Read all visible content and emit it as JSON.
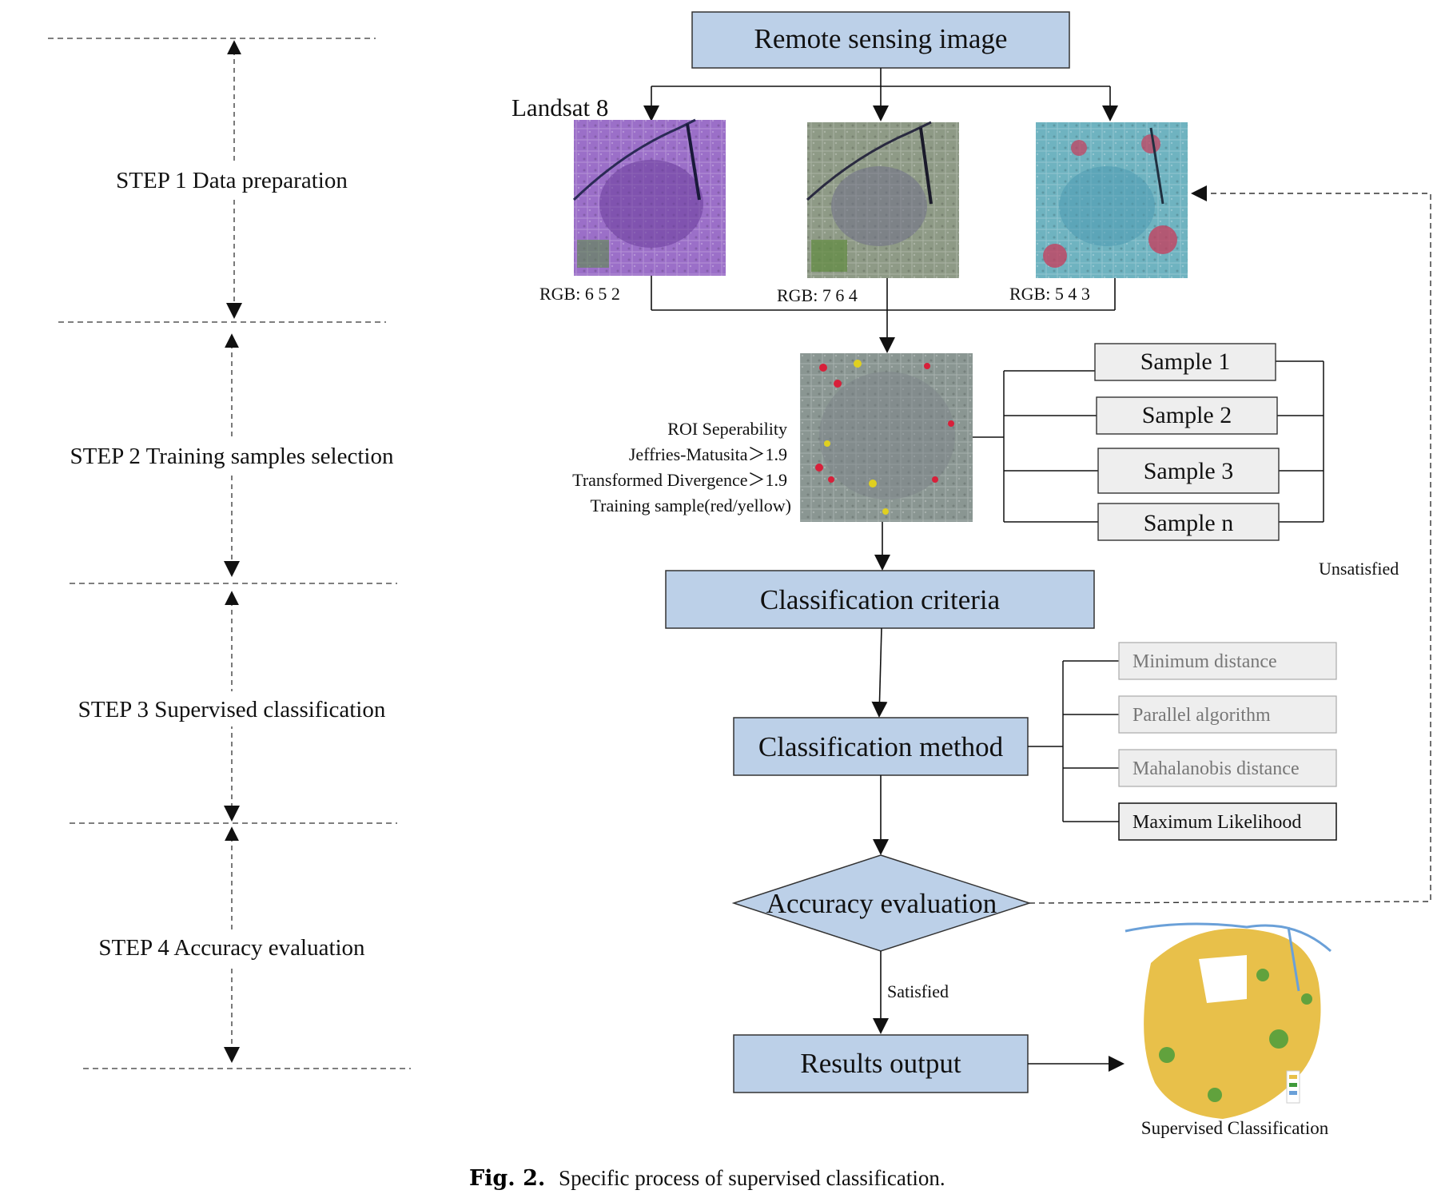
{
  "steps": [
    {
      "label": "STEP 1 Data preparation"
    },
    {
      "label": "STEP 2 Training samples selection"
    },
    {
      "label": "STEP 3 Supervised classification"
    },
    {
      "label": "STEP 4 Accuracy evaluation"
    }
  ],
  "flow": {
    "remote_sensing": "Remote sensing image",
    "landsat": "Landsat 8",
    "rgb": [
      {
        "label": "RGB: 6 5 2",
        "tint": "#9b6fc8"
      },
      {
        "label": "RGB: 7 6 4",
        "tint": "#8e9a86"
      },
      {
        "label": "RGB: 5 4 3",
        "tint": "#6fb3c0"
      }
    ],
    "roi": {
      "lines": [
        "ROI Seperability",
        "Jeffries-Matusita＞1.9",
        "Transformed Divergence＞1.9",
        "Training sample(red/yellow)"
      ]
    },
    "samples": [
      "Sample 1",
      "Sample 2",
      "Sample 3",
      "Sample n"
    ],
    "criteria": "Classification criteria",
    "method": "Classification method",
    "methods": [
      {
        "label": "Minimum distance",
        "selected": false
      },
      {
        "label": "Parallel algorithm",
        "selected": false
      },
      {
        "label": "Mahalanobis distance",
        "selected": false
      },
      {
        "label": "Maximum Likelihood",
        "selected": true
      }
    ],
    "accuracy": "Accuracy evaluation",
    "unsatisfied": "Unsatisfied",
    "satisfied": "Satisfied",
    "results": "Results output",
    "result_image_caption": "Supervised Classification"
  },
  "caption": {
    "label": "Fig. 2.",
    "text": "Specific process of supervised classification."
  },
  "colors": {
    "box_fill": "#bcd0e8",
    "sample_fill": "#eeeeee",
    "method_fill_inactive": "#eeeeee",
    "line": "#111111"
  }
}
